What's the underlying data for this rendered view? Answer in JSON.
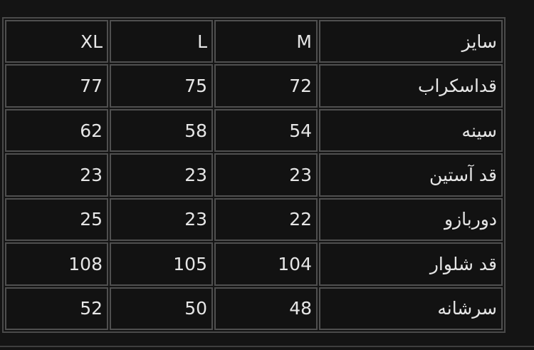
{
  "table": {
    "header": {
      "label": "سایز",
      "sizes": [
        "M",
        "L",
        "XL"
      ]
    },
    "rows": [
      {
        "label": "قداسکراب",
        "values": [
          "72",
          "75",
          "77"
        ]
      },
      {
        "label": "سینه",
        "values": [
          "54",
          "58",
          "62"
        ]
      },
      {
        "label": "قد آستین",
        "values": [
          "23",
          "23",
          "23"
        ]
      },
      {
        "label": "دوربازو",
        "values": [
          "22",
          "23",
          "25"
        ]
      },
      {
        "label": "قد شلوار",
        "values": [
          "104",
          "105",
          "108"
        ]
      },
      {
        "label": "سرشانه",
        "values": [
          "48",
          "50",
          "52"
        ]
      }
    ]
  }
}
